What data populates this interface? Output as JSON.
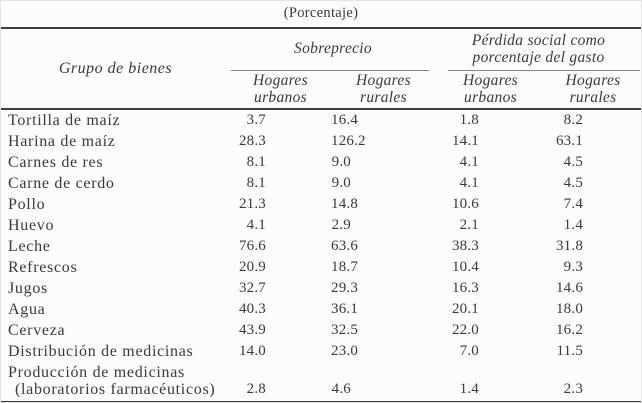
{
  "title": "(Porcentaje)",
  "table": {
    "row_group_header": "Grupo de bienes",
    "group_headers": [
      "Sobreprecio",
      "Pérdida social como porcentaje del gasto"
    ],
    "column_headers": [
      "Hogares urbanos",
      "Hogares rurales",
      "Hogares urbanos",
      "Hogares rurales"
    ],
    "rows": [
      {
        "label": "Tortilla de maíz",
        "values": [
          "3.7",
          "16.4",
          "1.8",
          "8.2"
        ]
      },
      {
        "label": "Harina de maíz",
        "values": [
          "28.3",
          "126.2",
          "14.1",
          "63.1"
        ]
      },
      {
        "label": "Carnes de res",
        "values": [
          "8.1",
          "9.0",
          "4.1",
          "4.5"
        ]
      },
      {
        "label": "Carne de cerdo",
        "values": [
          "8.1",
          "9.0",
          "4.1",
          "4.5"
        ]
      },
      {
        "label": "Pollo",
        "values": [
          "21.3",
          "14.8",
          "10.6",
          "7.4"
        ]
      },
      {
        "label": "Huevo",
        "values": [
          "4.1",
          "2.9",
          "2.1",
          "1.4"
        ]
      },
      {
        "label": "Leche",
        "values": [
          "76.6",
          "63.6",
          "38.3",
          "31.8"
        ]
      },
      {
        "label": "Refrescos",
        "values": [
          "20.9",
          "18.7",
          "10.4",
          "9.3"
        ]
      },
      {
        "label": "Jugos",
        "values": [
          "32.7",
          "29.3",
          "16.3",
          "14.6"
        ]
      },
      {
        "label": "Agua",
        "values": [
          "40.3",
          "36.1",
          "20.1",
          "18.0"
        ]
      },
      {
        "label": "Cerveza",
        "values": [
          "43.9",
          "32.5",
          "22.0",
          "16.2"
        ]
      },
      {
        "label": "Distribución de medicinas",
        "values": [
          "14.0",
          "23.0",
          "7.0",
          "11.5"
        ]
      },
      {
        "label": "Producción de medicinas",
        "sublabel": "(laboratorios farmacéuticos)",
        "values": [
          "2.8",
          "4.6",
          "1.4",
          "2.3"
        ]
      }
    ]
  },
  "colors": {
    "text": "#3a3a3a",
    "heavy_rule": "#3f3f3f",
    "thin_rule": "#878787",
    "background": "#fcfcfc"
  }
}
